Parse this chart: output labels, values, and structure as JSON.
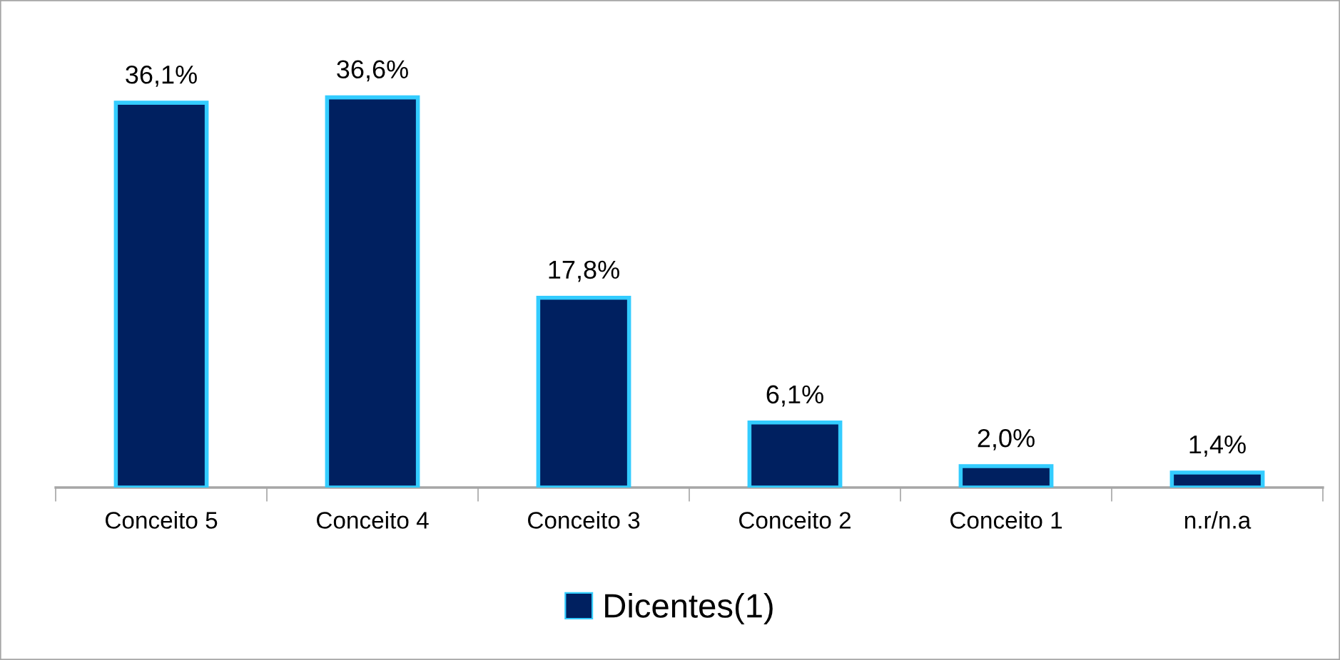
{
  "chart_data": {
    "type": "bar",
    "categories": [
      "Conceito 5",
      "Conceito 4",
      "Conceito 3",
      "Conceito 2",
      "Conceito 1",
      "n.r/n.a"
    ],
    "series": [
      {
        "name": "Dicentes(1)",
        "color": "#002060",
        "values": [
          36.1,
          36.6,
          17.8,
          6.1,
          2.0,
          1.4
        ],
        "value_labels": [
          "36,1%",
          "36,6%",
          "17,8%",
          "6,1%",
          "2,0%",
          "1,4%"
        ]
      }
    ],
    "legend": "bottom",
    "tick_labels": "x"
  }
}
